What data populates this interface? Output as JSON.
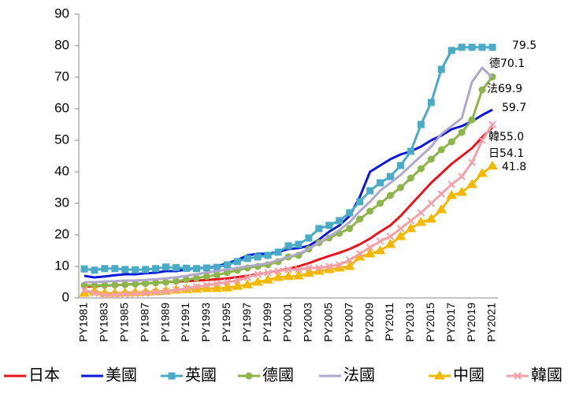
{
  "chart_data": {
    "type": "line",
    "categories": [
      "PY1981",
      null,
      "PY1983",
      null,
      "PY1985",
      null,
      "PY1987",
      null,
      "PY1989",
      null,
      "PY1991",
      null,
      "PY1993",
      null,
      "PY1995",
      null,
      "PY1997",
      null,
      "PY1999",
      null,
      "PY2001",
      null,
      "PY2003",
      null,
      "PY2005",
      null,
      "PY2007",
      null,
      "PY2009",
      null,
      "PY2011",
      null,
      "PY2013",
      null,
      "PY2015",
      null,
      "PY2017",
      null,
      "PY2019",
      null,
      "PY2021"
    ],
    "ylim": [
      0,
      90
    ],
    "yticks": [
      0,
      10,
      20,
      30,
      40,
      50,
      60,
      70,
      80,
      90
    ],
    "grid": false,
    "series": [
      {
        "name": "日本",
        "color": "#e8141c",
        "marker": "none",
        "values": [
          3.5,
          3.7,
          3.9,
          4.0,
          4.2,
          4.4,
          4.6,
          4.8,
          5.0,
          5.2,
          5.3,
          5.5,
          5.7,
          5.9,
          6.2,
          6.6,
          7.0,
          7.5,
          8.0,
          8.6,
          9.2,
          10.0,
          11.0,
          12.2,
          13.3,
          14.3,
          15.5,
          17.0,
          18.8,
          21.0,
          23.0,
          26.0,
          29.5,
          33.0,
          36.5,
          39.5,
          42.5,
          45.0,
          47.5,
          51.0,
          54.1
        ],
        "value_labels": [
          null,
          null,
          null,
          null,
          null,
          null,
          null,
          null,
          null,
          null,
          null,
          null,
          null,
          null,
          null,
          null,
          null,
          null,
          null,
          null,
          null,
          null,
          null,
          null,
          null,
          null,
          null,
          null,
          null,
          null,
          null,
          null,
          null,
          null,
          null,
          null,
          null,
          null,
          null,
          null,
          "日54.1"
        ]
      },
      {
        "name": "美國",
        "color": "#0a18d8",
        "marker": "none",
        "values": [
          7.0,
          6.5,
          6.8,
          7.2,
          7.5,
          7.5,
          7.8,
          8.0,
          8.5,
          8.5,
          9.0,
          9.5,
          9.5,
          10.0,
          11.0,
          12.0,
          13.5,
          14.0,
          14.0,
          14.5,
          15.5,
          15.8,
          16.5,
          18.5,
          21.0,
          23.0,
          26.0,
          32.0,
          40.0,
          42.0,
          44.0,
          45.5,
          46.5,
          48.0,
          50.0,
          51.5,
          53.5,
          54.5,
          56.0,
          58.0,
          59.7
        ]
      },
      {
        "name": "英國",
        "color": "#4aabc6",
        "marker": "square",
        "values": [
          9.2,
          8.8,
          9.3,
          9.3,
          9.0,
          8.9,
          9.0,
          9.3,
          9.8,
          9.6,
          9.4,
          9.3,
          9.5,
          9.7,
          10.5,
          11.5,
          12.5,
          13.0,
          13.5,
          14.5,
          16.5,
          17.0,
          19.0,
          22.0,
          23.0,
          24.5,
          27.0,
          30.5,
          34.0,
          36.5,
          38.5,
          42.0,
          46.5,
          55.0,
          62.0,
          72.5,
          78.5,
          79.5,
          79.5,
          79.5,
          79.5
        ]
      },
      {
        "name": "德國",
        "color": "#8db54a",
        "marker": "circle",
        "values": [
          4.0,
          3.9,
          4.0,
          4.1,
          4.2,
          4.4,
          4.6,
          4.8,
          5.0,
          5.3,
          5.8,
          6.3,
          6.8,
          7.3,
          8.0,
          8.8,
          9.5,
          10.0,
          10.5,
          11.5,
          13.0,
          13.5,
          15.5,
          17.5,
          19.0,
          20.5,
          22.0,
          25.0,
          27.5,
          30.0,
          32.5,
          35.0,
          38.0,
          41.0,
          44.0,
          47.0,
          49.5,
          52.5,
          56.5,
          66.0,
          70.1
        ],
        "value_labels": [
          null,
          null,
          null,
          null,
          null,
          null,
          null,
          null,
          null,
          null,
          null,
          null,
          null,
          null,
          null,
          null,
          null,
          null,
          null,
          null,
          null,
          null,
          null,
          null,
          null,
          null,
          null,
          null,
          null,
          null,
          null,
          null,
          null,
          null,
          null,
          null,
          null,
          null,
          null,
          null,
          "德70.1"
        ]
      },
      {
        "name": "法國",
        "color": "#b0a8cc",
        "marker": "none",
        "values": [
          5.0,
          5.0,
          5.2,
          5.3,
          5.5,
          5.5,
          5.7,
          5.9,
          6.2,
          6.5,
          7.0,
          7.5,
          8.0,
          8.5,
          9.0,
          9.5,
          10.0,
          10.5,
          11.0,
          12.0,
          13.0,
          14.0,
          15.5,
          17.5,
          19.5,
          21.5,
          24.0,
          27.5,
          30.5,
          34.0,
          36.5,
          39.0,
          42.0,
          45.0,
          48.0,
          52.0,
          54.5,
          57.0,
          68.5,
          73.0,
          69.9
        ],
        "value_labels": [
          null,
          null,
          null,
          null,
          null,
          null,
          null,
          null,
          null,
          null,
          null,
          null,
          null,
          null,
          null,
          null,
          null,
          null,
          null,
          null,
          null,
          null,
          null,
          null,
          null,
          null,
          null,
          null,
          null,
          null,
          null,
          null,
          null,
          null,
          null,
          null,
          null,
          null,
          null,
          null,
          "法69.9"
        ]
      },
      {
        "name": "中國",
        "color": "#f5b800",
        "marker": "triangle",
        "values": [
          1.5,
          2.0,
          1.5,
          1.5,
          1.6,
          1.7,
          1.8,
          2.0,
          2.2,
          2.5,
          2.7,
          2.8,
          3.0,
          3.0,
          3.2,
          3.7,
          4.2,
          5.0,
          5.7,
          6.5,
          6.8,
          7.0,
          7.8,
          8.5,
          9.0,
          9.5,
          10.0,
          13.0,
          14.0,
          15.0,
          17.0,
          19.5,
          22.0,
          24.0,
          25.0,
          28.0,
          32.5,
          33.5,
          36.0,
          39.5,
          41.8
        ]
      },
      {
        "name": "韓國",
        "color": "#f4a0a8",
        "marker": "cross",
        "values": [
          2.5,
          1.5,
          1.0,
          1.0,
          1.2,
          1.3,
          1.5,
          1.8,
          2.0,
          2.5,
          3.0,
          3.5,
          4.0,
          4.5,
          5.0,
          5.5,
          6.5,
          7.5,
          8.0,
          8.5,
          9.0,
          9.0,
          9.5,
          9.5,
          10.0,
          10.5,
          12.0,
          14.0,
          16.0,
          18.0,
          19.5,
          22.0,
          24.5,
          27.0,
          30.0,
          33.0,
          36.0,
          38.5,
          43.0,
          50.0,
          55.0
        ],
        "value_labels": [
          null,
          null,
          null,
          null,
          null,
          null,
          null,
          null,
          null,
          null,
          null,
          null,
          null,
          null,
          null,
          null,
          null,
          null,
          null,
          null,
          null,
          null,
          null,
          null,
          null,
          null,
          null,
          null,
          null,
          null,
          null,
          null,
          null,
          null,
          null,
          null,
          null,
          null,
          null,
          null,
          "韓55.0"
        ]
      }
    ]
  }
}
